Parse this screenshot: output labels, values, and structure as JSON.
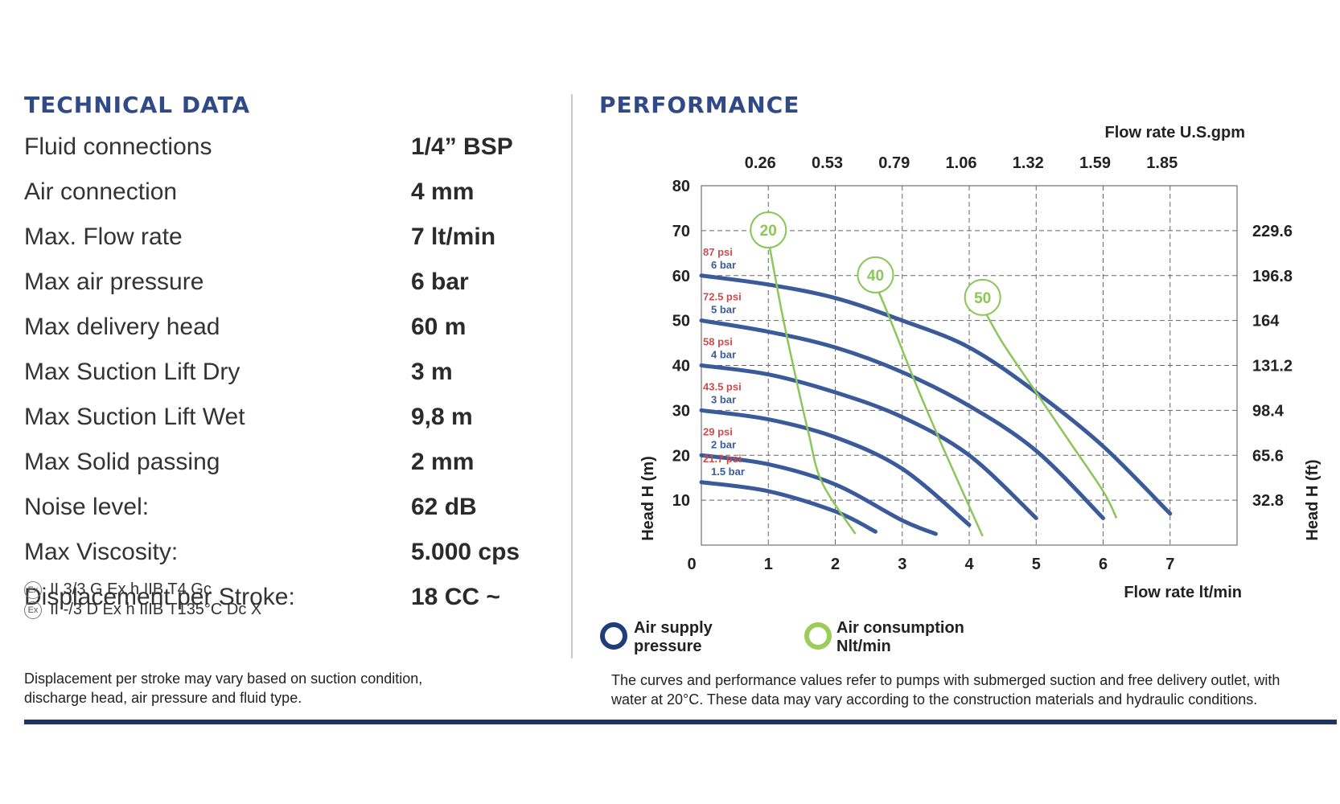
{
  "technical_data": {
    "title": "TECHNICAL DATA",
    "rows": [
      {
        "label": "Fluid connections",
        "value": "1/4” BSP"
      },
      {
        "label": "Air connection",
        "value": "4 mm"
      },
      {
        "label": "Max. Flow rate",
        "value": "7 lt/min"
      },
      {
        "label": "Max air pressure",
        "value": "6 bar"
      },
      {
        "label": "Max delivery head",
        "value": "60 m"
      },
      {
        "label": "Max Suction Lift Dry",
        "value": "3 m"
      },
      {
        "label": "Max Suction Lift Wet",
        "value": "9,8 m"
      },
      {
        "label": "Max Solid passing",
        "value": "2 mm"
      },
      {
        "label": "Noise level:",
        "value": "62 dB"
      },
      {
        "label": "Max Viscosity:",
        "value": "5.000 cps"
      },
      {
        "label": "Displacement per Stroke:",
        "value": "18 CC ~"
      }
    ],
    "atex": [
      "II 3/3 G Ex h IIB T4 Gc",
      "II -/3 D Ex h IIIB T135°C Dc X"
    ],
    "atex_mark": "Ex",
    "note_lines": [
      "Displacement per stroke may vary based on suction condition,",
      "discharge head, air pressure and fluid type."
    ]
  },
  "performance": {
    "title": "PERFORMANCE",
    "legend": {
      "air_supply_line1": "Air supply",
      "air_supply_line2": "pressure",
      "air_consumption_line1": "Air consumption",
      "air_consumption_line2": "Nlt/min"
    },
    "note_lines": [
      "The curves and performance values refer to pumps with submerged suction and free delivery outlet, with",
      "water at 20°C. These data may vary according to the construction materials and hydraulic conditions."
    ]
  },
  "colors": {
    "title": "#2f4a86",
    "pressure_curve": "#3a5a9a",
    "air_curve": "#8cc65a",
    "psi_text": "#d24a4a",
    "bar_text": "#3a5a9a",
    "rule": "#1f3461"
  },
  "chart_data": {
    "type": "line",
    "xlabel_bottom": "Flow rate  lt/min",
    "xlabel_top": "Flow rate U.S.gpm",
    "ylabel_left": "Head H (m)",
    "ylabel_right": "Head H (ft)",
    "xlim": [
      0,
      8
    ],
    "ylim": [
      0,
      80
    ],
    "x_ticks": [
      "0",
      "1",
      "2",
      "3",
      "4",
      "5",
      "6",
      "7"
    ],
    "y_ticks": [
      "10",
      "20",
      "30",
      "40",
      "50",
      "60",
      "70",
      "80"
    ],
    "top_ticks": [
      {
        "x": 1,
        "label": "0.26"
      },
      {
        "x": 2,
        "label": "0.53"
      },
      {
        "x": 3,
        "label": "0.79"
      },
      {
        "x": 4,
        "label": "1.06"
      },
      {
        "x": 5,
        "label": "1.32"
      },
      {
        "x": 6,
        "label": "1.59"
      },
      {
        "x": 7,
        "label": "1.85"
      }
    ],
    "right_ticks": [
      {
        "y": 70,
        "label": "229.6"
      },
      {
        "y": 60,
        "label": "196.8"
      },
      {
        "y": 50,
        "label": "164"
      },
      {
        "y": 40,
        "label": "131.2"
      },
      {
        "y": 30,
        "label": "98.4"
      },
      {
        "y": 20,
        "label": "65.6"
      },
      {
        "y": 10,
        "label": "32.8"
      }
    ],
    "grid": true,
    "pressure_series": [
      {
        "psi": "87 psi",
        "bar": "6 bar",
        "points": [
          [
            0,
            60
          ],
          [
            1,
            58
          ],
          [
            2,
            55
          ],
          [
            3,
            50
          ],
          [
            4,
            44
          ],
          [
            5,
            34
          ],
          [
            6,
            22
          ],
          [
            7,
            7
          ]
        ]
      },
      {
        "psi": "72.5 psi",
        "bar": "5 bar",
        "points": [
          [
            0,
            50
          ],
          [
            1,
            47.5
          ],
          [
            2,
            44
          ],
          [
            3,
            38.5
          ],
          [
            4,
            31
          ],
          [
            5,
            21
          ],
          [
            6,
            6
          ]
        ]
      },
      {
        "psi": "58 psi",
        "bar": "4 bar",
        "points": [
          [
            0,
            40
          ],
          [
            1,
            38
          ],
          [
            2,
            34
          ],
          [
            3,
            28.5
          ],
          [
            4,
            20
          ],
          [
            5,
            6
          ]
        ]
      },
      {
        "psi": "43.5 psi",
        "bar": "3 bar",
        "points": [
          [
            0,
            30
          ],
          [
            1,
            28
          ],
          [
            2,
            24
          ],
          [
            3,
            17
          ],
          [
            4,
            4.5
          ]
        ]
      },
      {
        "psi": "29 psi",
        "bar": "2 bar",
        "points": [
          [
            0,
            20
          ],
          [
            1,
            18
          ],
          [
            2,
            13.5
          ],
          [
            3,
            5.5
          ],
          [
            3.5,
            2.5
          ]
        ]
      },
      {
        "psi": "21.7 psi",
        "bar": "1.5 bar",
        "points": [
          [
            0,
            14
          ],
          [
            1,
            12
          ],
          [
            2,
            7.5
          ],
          [
            2.6,
            3
          ]
        ]
      }
    ],
    "air_series": [
      {
        "label": "20",
        "points": [
          [
            1,
            68
          ],
          [
            1.2,
            52
          ],
          [
            1.4,
            38
          ],
          [
            1.6,
            25
          ],
          [
            1.8,
            14
          ],
          [
            2.3,
            2.5
          ]
        ]
      },
      {
        "label": "40",
        "points": [
          [
            2.6,
            58
          ],
          [
            2.8,
            51
          ],
          [
            3.2,
            36
          ],
          [
            3.6,
            22
          ],
          [
            4.2,
            2
          ]
        ]
      },
      {
        "label": "50",
        "points": [
          [
            4.2,
            53
          ],
          [
            4.5,
            45
          ],
          [
            5,
            34
          ],
          [
            5.5,
            23
          ],
          [
            6,
            12
          ],
          [
            6.2,
            6
          ]
        ]
      }
    ]
  }
}
